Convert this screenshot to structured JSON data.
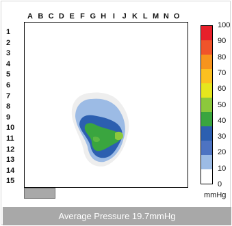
{
  "columns": [
    "A",
    "B",
    "C",
    "D",
    "E",
    "F",
    "G",
    "H",
    "I",
    "J",
    "K",
    "L",
    "M",
    "N",
    "O"
  ],
  "rows": [
    "1",
    "2",
    "3",
    "4",
    "5",
    "6",
    "7",
    "8",
    "9",
    "10",
    "11",
    "12",
    "13",
    "14",
    "15"
  ],
  "scale": {
    "labels": [
      "100",
      "90",
      "80",
      "70",
      "60",
      "50",
      "40",
      "30",
      "20",
      "10",
      "0"
    ],
    "colors": [
      "#e8202a",
      "#f0542a",
      "#f7941d",
      "#fcc020",
      "#e6e61e",
      "#8cc83c",
      "#3aa53f",
      "#2c5fb0",
      "#4d73c2",
      "#9cbbe5",
      "#ffffff"
    ],
    "unit": "mmHg"
  },
  "footer": {
    "text": "Average Pressure 19.7mmHg"
  }
}
